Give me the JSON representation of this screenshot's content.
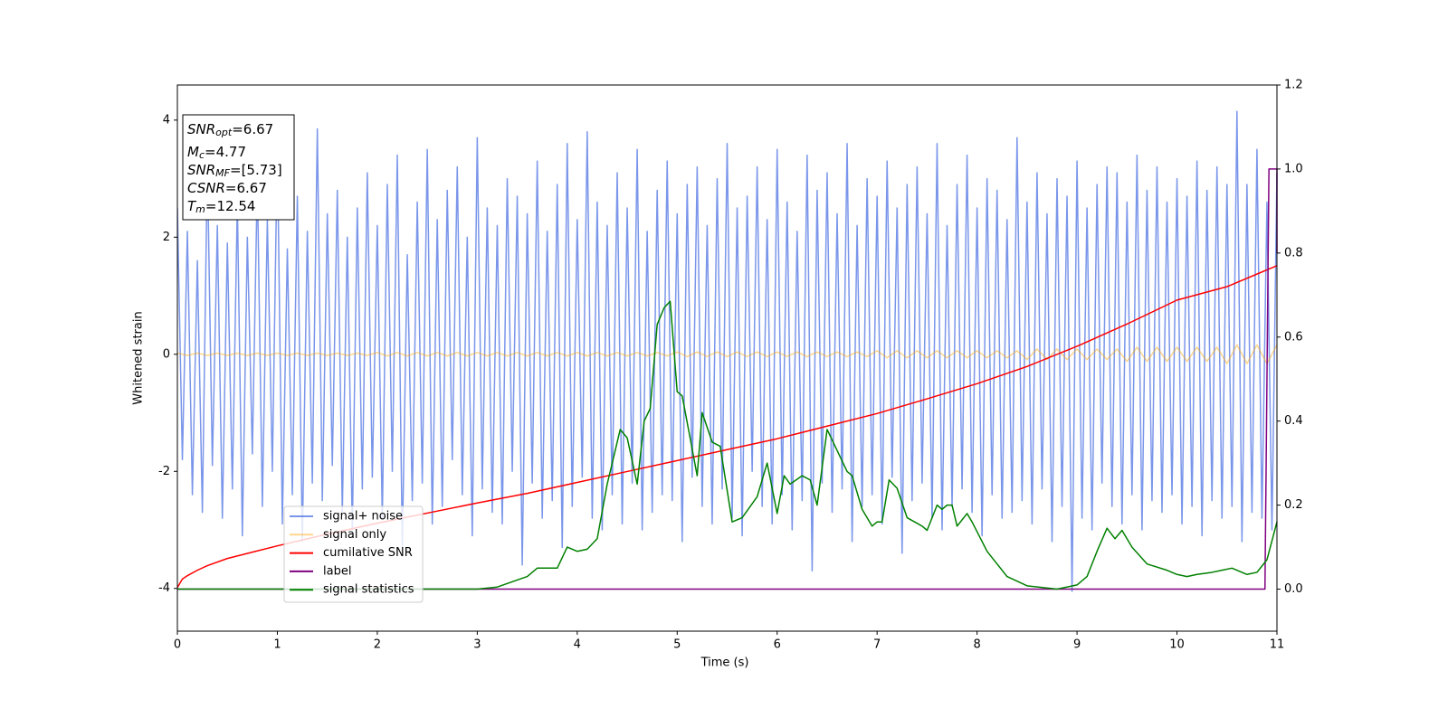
{
  "chart_data": {
    "type": "line",
    "xlabel": "Time (s)",
    "ylabel": "Whitened strain",
    "xlim": [
      0,
      11
    ],
    "xticks": [
      0,
      1,
      2,
      3,
      4,
      5,
      6,
      7,
      8,
      9,
      10,
      11
    ],
    "ylim": [
      -4.73,
      4.6
    ],
    "yticks": [
      -4,
      -2,
      0,
      2,
      4
    ],
    "y2lim": [
      -0.1,
      1.2
    ],
    "y2ticks": [
      {
        "value": 0,
        "label": "0.0"
      },
      {
        "value": 0.2,
        "label": "0.2"
      },
      {
        "value": 0.4,
        "label": "0.4"
      },
      {
        "value": 0.6,
        "label": "0.6"
      },
      {
        "value": 0.8,
        "label": "0.8"
      },
      {
        "value": 1,
        "label": "1.0"
      },
      {
        "value": 1.2,
        "label": "1.2"
      }
    ],
    "grid": false,
    "legend_position": "lower left",
    "text_box": [
      {
        "symbol": "SNR",
        "subscript": "opt",
        "text": "=6.67"
      },
      {
        "symbol": "M",
        "subscript": "c",
        "text": "=4.77"
      },
      {
        "symbol": "SNR",
        "subscript": "MF",
        "text": "=[5.73]"
      },
      {
        "symbol": "CSNR",
        "text": "=6.67"
      },
      {
        "symbol": "T",
        "subscript": "m",
        "text": "=12.54"
      }
    ],
    "series": [
      {
        "name": "signal+ noise",
        "color": "#4169e1",
        "opacity": 0.7,
        "x": [
          0,
          0.05,
          0.1,
          0.15,
          0.2,
          0.25,
          0.3,
          0.35,
          0.4,
          0.45,
          0.5,
          0.55,
          0.6,
          0.65,
          0.7,
          0.75,
          0.8,
          0.85,
          0.9,
          0.95,
          1,
          1.05,
          1.1,
          1.15,
          1.2,
          1.25,
          1.3,
          1.35,
          1.4,
          1.45,
          1.5,
          1.55,
          1.6,
          1.65,
          1.7,
          1.75,
          1.8,
          1.85,
          1.9,
          1.95,
          2,
          2.05,
          2.1,
          2.15,
          2.2,
          2.25,
          2.3,
          2.35,
          2.4,
          2.45,
          2.5,
          2.55,
          2.6,
          2.65,
          2.7,
          2.75,
          2.8,
          2.85,
          2.9,
          2.95,
          3,
          3.05,
          3.1,
          3.15,
          3.2,
          3.25,
          3.3,
          3.35,
          3.4,
          3.45,
          3.5,
          3.55,
          3.6,
          3.65,
          3.7,
          3.75,
          3.8,
          3.85,
          3.9,
          3.95,
          4,
          4.05,
          4.1,
          4.15,
          4.2,
          4.25,
          4.3,
          4.35,
          4.4,
          4.45,
          4.5,
          4.55,
          4.6,
          4.65,
          4.7,
          4.75,
          4.8,
          4.85,
          4.9,
          4.95,
          5,
          5.05,
          5.1,
          5.15,
          5.2,
          5.25,
          5.3,
          5.35,
          5.4,
          5.45,
          5.5,
          5.55,
          5.6,
          5.65,
          5.7,
          5.75,
          5.8,
          5.85,
          5.9,
          5.95,
          6,
          6.05,
          6.1,
          6.15,
          6.2,
          6.25,
          6.3,
          6.35,
          6.4,
          6.45,
          6.5,
          6.55,
          6.6,
          6.65,
          6.7,
          6.75,
          6.8,
          6.85,
          6.9,
          6.95,
          7,
          7.05,
          7.1,
          7.15,
          7.2,
          7.25,
          7.3,
          7.35,
          7.4,
          7.45,
          7.5,
          7.55,
          7.6,
          7.65,
          7.7,
          7.75,
          7.8,
          7.85,
          7.9,
          7.95,
          8,
          8.05,
          8.1,
          8.15,
          8.2,
          8.25,
          8.3,
          8.35,
          8.4,
          8.45,
          8.5,
          8.55,
          8.6,
          8.65,
          8.7,
          8.75,
          8.8,
          8.85,
          8.9,
          8.95,
          9,
          9.05,
          9.1,
          9.15,
          9.2,
          9.25,
          9.3,
          9.35,
          9.4,
          9.45,
          9.5,
          9.55,
          9.6,
          9.65,
          9.7,
          9.75,
          9.8,
          9.85,
          9.9,
          9.95,
          10,
          10.05,
          10.1,
          10.15,
          10.2,
          10.25,
          10.3,
          10.35,
          10.4,
          10.45,
          10.5,
          10.55,
          10.6,
          10.65,
          10.7,
          10.75,
          10.8,
          10.85,
          10.9,
          10.95,
          11
        ],
        "values": [
          2.5,
          -1.8,
          2.1,
          -2.4,
          1.6,
          -2.7,
          3.3,
          -1.9,
          2.2,
          -2.8,
          1.9,
          -2.3,
          2.6,
          -3.1,
          2.0,
          -1.7,
          3.0,
          -2.6,
          2.3,
          -2.0,
          3.6,
          -2.9,
          1.8,
          -2.4,
          2.7,
          -3.2,
          2.1,
          -2.2,
          3.85,
          -2.5,
          2.4,
          -1.9,
          2.8,
          -2.7,
          2.0,
          -3.0,
          2.5,
          -2.3,
          3.1,
          -2.1,
          2.2,
          -2.8,
          2.9,
          -2.0,
          3.4,
          -3.3,
          1.7,
          -2.5,
          2.6,
          -2.2,
          3.5,
          -2.9,
          2.3,
          -2.6,
          2.8,
          -1.8,
          3.2,
          -2.4,
          2.0,
          -3.1,
          3.7,
          -2.3,
          2.5,
          -2.7,
          2.2,
          -2.9,
          3.0,
          -2.0,
          2.7,
          -3.6,
          2.4,
          -2.2,
          3.3,
          -2.8,
          2.1,
          -2.5,
          2.9,
          -3.3,
          3.6,
          -2.6,
          2.3,
          -2.1,
          3.8,
          -2.8,
          2.6,
          -3.0,
          2.2,
          -2.4,
          3.1,
          -2.9,
          2.5,
          -2.2,
          3.5,
          -3.0,
          2.1,
          -2.7,
          2.8,
          -2.4,
          3.3,
          -2.5,
          2.4,
          -3.2,
          2.9,
          -2.1,
          3.2,
          -2.6,
          2.2,
          -2.9,
          3.0,
          -2.3,
          3.6,
          -2.8,
          2.5,
          -3.1,
          2.7,
          -2.0,
          3.2,
          -2.6,
          2.3,
          -2.9,
          3.5,
          -2.4,
          2.6,
          -3.0,
          2.1,
          -2.5,
          3.4,
          -3.7,
          2.8,
          -2.2,
          3.1,
          -2.7,
          2.4,
          -2.3,
          3.6,
          -3.2,
          2.2,
          -2.6,
          3.0,
          -2.4,
          2.7,
          -2.9,
          3.3,
          -2.1,
          2.5,
          -3.4,
          2.9,
          -2.5,
          3.2,
          -2.2,
          2.4,
          -2.8,
          3.6,
          -3.0,
          2.2,
          -2.6,
          2.9,
          -2.3,
          3.4,
          -2.7,
          2.5,
          -3.1,
          3.0,
          -2.4,
          2.8,
          -2.8,
          2.3,
          -2.7,
          3.7,
          -2.5,
          2.6,
          -2.9,
          3.1,
          -2.3,
          2.4,
          -3.2,
          3.0,
          -2.6,
          2.7,
          -4.05,
          3.3,
          -2.8,
          2.5,
          -3.0,
          2.9,
          -2.2,
          3.2,
          -2.6,
          3.1,
          -2.9,
          2.6,
          -2.4,
          3.4,
          -3.0,
          2.8,
          -2.5,
          3.2,
          -2.7,
          2.6,
          -2.4,
          3.0,
          -2.9,
          2.7,
          -2.6,
          3.3,
          -3.1,
          2.8,
          -2.5,
          3.2,
          -2.8,
          2.9,
          -2.6,
          4.15,
          -3.2,
          2.9,
          -2.7,
          3.5,
          -2.8,
          2.6,
          -3.0,
          3.1
        ]
      },
      {
        "name": "signal only",
        "color": "#ffa500",
        "opacity": 0.45,
        "x": [
          0,
          0.1,
          0.2,
          0.3,
          0.4,
          0.5,
          0.6,
          0.7,
          0.8,
          0.9,
          1,
          1.1,
          1.2,
          1.3,
          1.4,
          1.5,
          1.6,
          1.7,
          1.8,
          1.9,
          2,
          2.1,
          2.2,
          2.3,
          2.4,
          2.5,
          2.6,
          2.7,
          2.8,
          2.9,
          3,
          3.1,
          3.2,
          3.3,
          3.4,
          3.5,
          3.6,
          3.7,
          3.8,
          3.9,
          4,
          4.1,
          4.2,
          4.3,
          4.4,
          4.5,
          4.6,
          4.7,
          4.8,
          4.9,
          5,
          5.1,
          5.2,
          5.3,
          5.4,
          5.5,
          5.6,
          5.7,
          5.8,
          5.9,
          6,
          6.1,
          6.2,
          6.3,
          6.4,
          6.5,
          6.6,
          6.7,
          6.8,
          6.9,
          7,
          7.1,
          7.2,
          7.3,
          7.4,
          7.5,
          7.6,
          7.7,
          7.8,
          7.9,
          8,
          8.1,
          8.2,
          8.3,
          8.4,
          8.5,
          8.6,
          8.7,
          8.8,
          8.9,
          9,
          9.1,
          9.2,
          9.3,
          9.4,
          9.5,
          9.6,
          9.7,
          9.8,
          9.9,
          10,
          10.1,
          10.2,
          10.3,
          10.4,
          10.5,
          10.6,
          10.7,
          10.8,
          10.9,
          11
        ],
        "values": [
          0.02,
          -0.02,
          0.02,
          -0.02,
          0.02,
          -0.02,
          0.02,
          -0.02,
          0.02,
          -0.02,
          0.02,
          -0.02,
          0.02,
          -0.02,
          0.02,
          -0.02,
          0.02,
          -0.02,
          0.02,
          -0.02,
          0.03,
          -0.03,
          0.03,
          -0.03,
          0.03,
          -0.03,
          0.03,
          -0.03,
          0.03,
          -0.03,
          0.03,
          -0.03,
          0.03,
          -0.03,
          0.03,
          -0.03,
          0.03,
          -0.03,
          0.03,
          -0.03,
          0.03,
          -0.03,
          0.03,
          -0.03,
          0.03,
          -0.03,
          0.03,
          -0.03,
          0.03,
          -0.03,
          0.04,
          -0.04,
          0.04,
          -0.04,
          0.04,
          -0.04,
          0.04,
          -0.04,
          0.04,
          -0.04,
          0.04,
          -0.04,
          0.04,
          -0.04,
          0.04,
          -0.04,
          0.04,
          -0.04,
          0.04,
          -0.04,
          0.06,
          -0.06,
          0.06,
          -0.06,
          0.06,
          -0.06,
          0.06,
          -0.06,
          0.06,
          -0.06,
          0.06,
          -0.06,
          0.06,
          -0.06,
          0.06,
          -0.09,
          0.09,
          -0.09,
          0.09,
          -0.09,
          0.09,
          -0.09,
          0.09,
          -0.09,
          0.09,
          -0.12,
          0.12,
          -0.12,
          0.12,
          -0.12,
          0.12,
          -0.12,
          0.12,
          -0.12,
          0.12,
          -0.16,
          0.16,
          -0.16,
          0.16,
          -0.16,
          0.16
        ]
      },
      {
        "name": "cumilative SNR",
        "color": "#ff0000",
        "axis": "y2",
        "x": [
          0,
          0.05,
          0.1,
          0.2,
          0.3,
          0.5,
          0.75,
          1,
          1.5,
          2,
          2.5,
          3,
          3.5,
          4,
          4.5,
          5,
          5.5,
          6,
          6.5,
          7,
          7.5,
          8,
          8.5,
          9,
          9.5,
          10,
          10.5,
          11
        ],
        "values": [
          0.004,
          0.024,
          0.032,
          0.045,
          0.056,
          0.073,
          0.088,
          0.103,
          0.131,
          0.157,
          0.181,
          0.205,
          0.228,
          0.254,
          0.28,
          0.306,
          0.332,
          0.358,
          0.388,
          0.418,
          0.453,
          0.489,
          0.53,
          0.578,
          0.631,
          0.688,
          0.72,
          0.77
        ]
      },
      {
        "name": "label",
        "color": "#800080",
        "axis": "y2",
        "x": [
          0,
          10.88,
          10.92,
          11,
          11
        ],
        "values": [
          0,
          0,
          1,
          1,
          0.8
        ]
      },
      {
        "name": "signal statistics",
        "color": "#008000",
        "axis": "y2",
        "x": [
          0,
          1,
          2,
          3,
          3.2,
          3.5,
          3.6,
          3.8,
          3.9,
          4,
          4.1,
          4.2,
          4.3,
          4.43,
          4.5,
          4.6,
          4.67,
          4.73,
          4.8,
          4.87,
          4.93,
          5,
          5.05,
          5.2,
          5.25,
          5.35,
          5.43,
          5.55,
          5.65,
          5.8,
          5.9,
          6,
          6.07,
          6.13,
          6.25,
          6.33,
          6.4,
          6.5,
          6.7,
          6.75,
          6.85,
          6.95,
          7,
          7.05,
          7.12,
          7.2,
          7.3,
          7.45,
          7.5,
          7.6,
          7.65,
          7.7,
          7.75,
          7.8,
          7.9,
          7.95,
          8.1,
          8.3,
          8.5,
          8.8,
          9,
          9.1,
          9.2,
          9.3,
          9.38,
          9.45,
          9.55,
          9.7,
          9.9,
          10,
          10.1,
          10.2,
          10.35,
          10.45,
          10.55,
          10.7,
          10.8,
          10.9,
          11
        ],
        "values": [
          0,
          0,
          0,
          0,
          0.005,
          0.03,
          0.05,
          0.05,
          0.1,
          0.09,
          0.095,
          0.12,
          0.25,
          0.38,
          0.36,
          0.25,
          0.4,
          0.43,
          0.63,
          0.67,
          0.685,
          0.47,
          0.46,
          0.27,
          0.42,
          0.35,
          0.34,
          0.16,
          0.17,
          0.22,
          0.3,
          0.18,
          0.27,
          0.25,
          0.27,
          0.26,
          0.2,
          0.38,
          0.28,
          0.27,
          0.19,
          0.15,
          0.16,
          0.16,
          0.26,
          0.24,
          0.17,
          0.15,
          0.14,
          0.2,
          0.19,
          0.2,
          0.2,
          0.15,
          0.18,
          0.16,
          0.09,
          0.03,
          0.008,
          0,
          0.01,
          0.03,
          0.09,
          0.145,
          0.12,
          0.14,
          0.1,
          0.06,
          0.045,
          0.035,
          0.03,
          0.035,
          0.04,
          0.045,
          0.05,
          0.035,
          0.04,
          0.07,
          0.16
        ]
      }
    ]
  }
}
